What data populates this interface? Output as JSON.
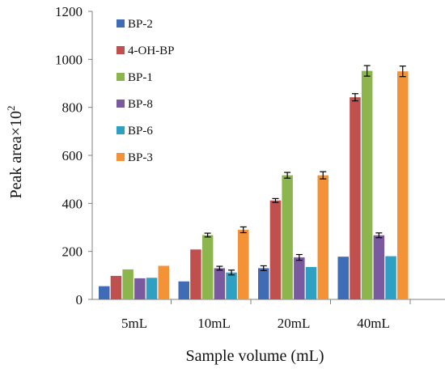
{
  "chart_data": {
    "type": "bar",
    "title": "",
    "xlabel": "Sample volume (mL)",
    "ylabel_text": "Peak area×10",
    "ylabel_superscript": "2",
    "categories": [
      "5mL",
      "10mL",
      "20mL",
      "40mL"
    ],
    "ylim": [
      0,
      1200
    ],
    "yticks": [
      "0",
      "200",
      "400",
      "600",
      "800",
      "1000",
      "1200"
    ],
    "ytick_values": [
      0,
      200,
      400,
      600,
      800,
      1000,
      1200
    ],
    "grid": false,
    "legend_position": "top-left",
    "series": [
      {
        "name": "BP-2",
        "color": "#3f6cb4",
        "values": [
          55,
          75,
          130,
          178
        ],
        "errors": [
          0,
          0,
          10,
          0
        ]
      },
      {
        "name": "4-OH-BP",
        "color": "#c0504d",
        "values": [
          98,
          208,
          412,
          842
        ],
        "errors": [
          0,
          0,
          8,
          15
        ]
      },
      {
        "name": "BP-1",
        "color": "#8db54e",
        "values": [
          125,
          268,
          517,
          952
        ],
        "errors": [
          0,
          8,
          12,
          22
        ]
      },
      {
        "name": "BP-8",
        "color": "#7a5a9e",
        "values": [
          88,
          130,
          175,
          267
        ],
        "errors": [
          0,
          8,
          12,
          10
        ]
      },
      {
        "name": "BP-6",
        "color": "#2f9fc2",
        "values": [
          90,
          112,
          135,
          180
        ],
        "errors": [
          0,
          10,
          0,
          0
        ]
      },
      {
        "name": "BP-3",
        "color": "#f39237",
        "values": [
          140,
          290,
          517,
          950
        ],
        "errors": [
          0,
          12,
          15,
          22
        ]
      }
    ]
  }
}
